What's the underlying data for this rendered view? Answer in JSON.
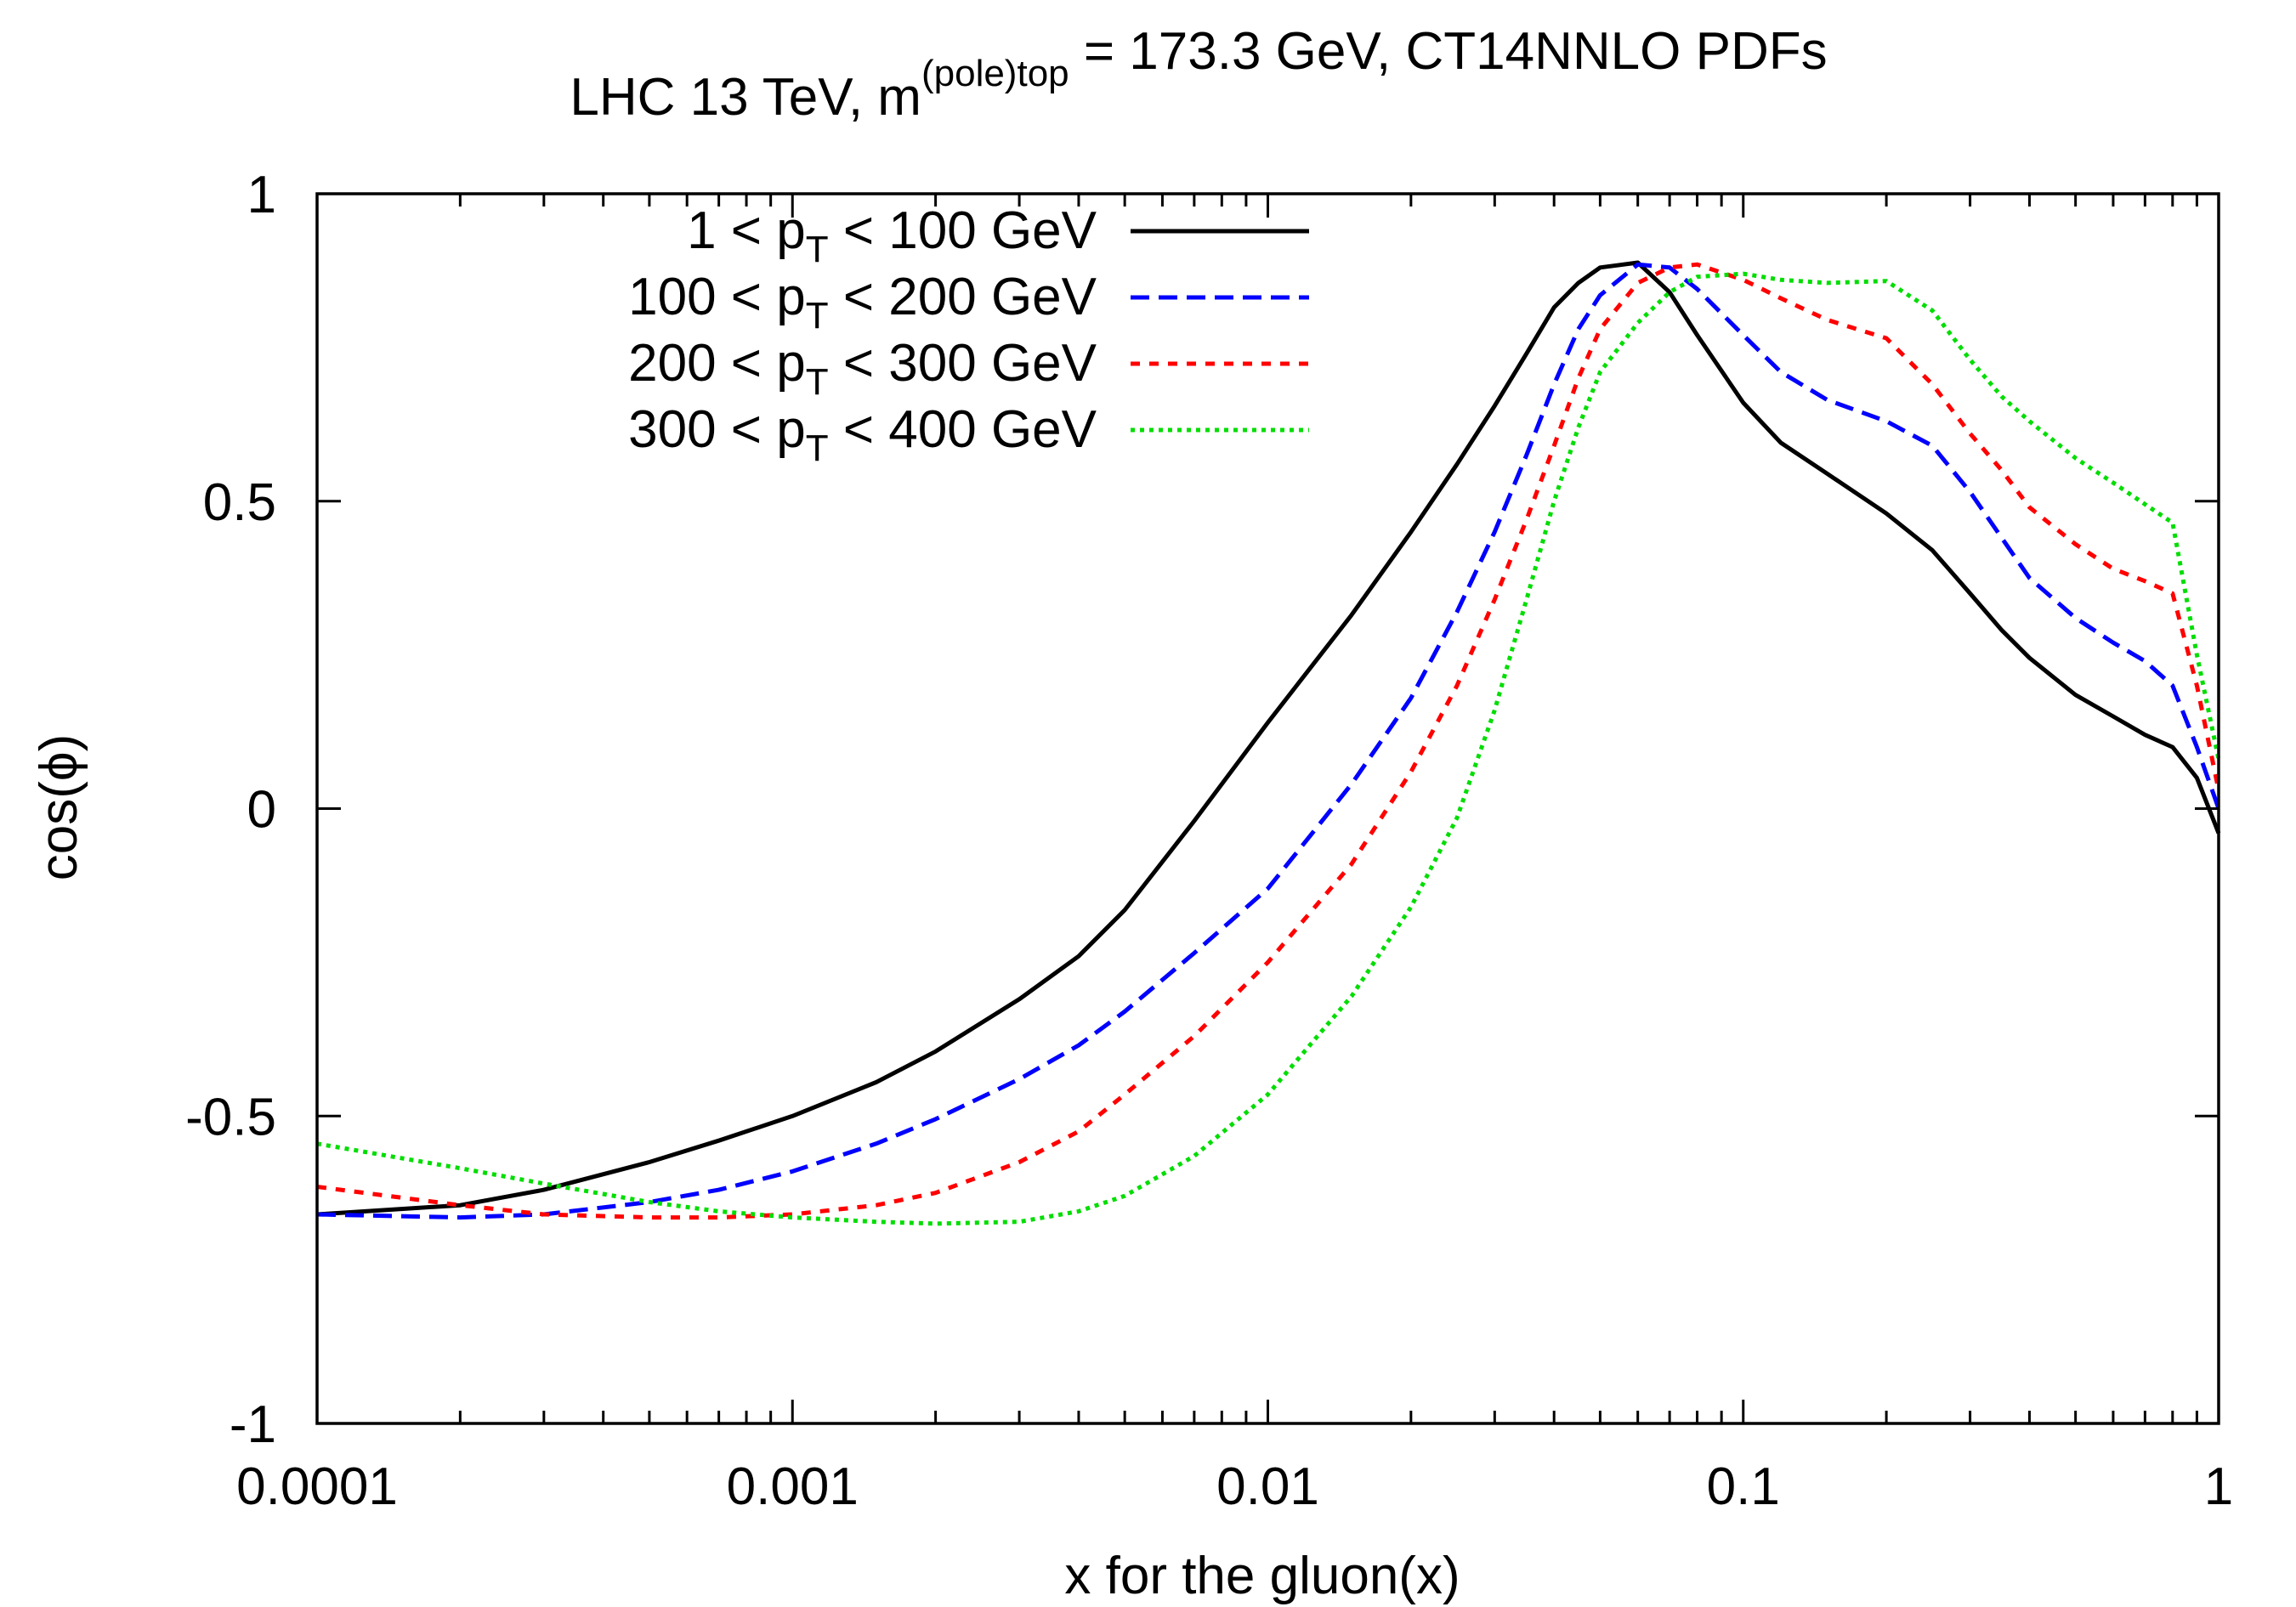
{
  "chart_data": {
    "type": "line",
    "title": {
      "prefix": "LHC 13 TeV, m",
      "superscript": "(pole)",
      "subscript": "top",
      "suffix": " = 173.3 GeV, CT14NNLO PDFs"
    },
    "xlabel": "x for the gluon(x)",
    "ylabel": "cos(ϕ)",
    "xscale": "log",
    "xlim": [
      0.0001,
      1
    ],
    "ylim": [
      -1,
      1
    ],
    "x_ticks": [
      {
        "value": 0.0001,
        "label": "0.0001"
      },
      {
        "value": 0.001,
        "label": "0.001"
      },
      {
        "value": 0.01,
        "label": "0.01"
      },
      {
        "value": 0.1,
        "label": "0.1"
      },
      {
        "value": 1,
        "label": "1"
      }
    ],
    "y_ticks": [
      {
        "value": -1,
        "label": "-1"
      },
      {
        "value": -0.5,
        "label": "-0.5"
      },
      {
        "value": 0,
        "label": "0"
      },
      {
        "value": 0.5,
        "label": "0.5"
      },
      {
        "value": 1,
        "label": "1"
      }
    ],
    "grid": false,
    "legend_position": "top-left",
    "series": [
      {
        "name": "1 < pT < 100 GeV",
        "legend": {
          "pre": "1 < p",
          "sub": "T",
          "post": " < 100 GeV"
        },
        "color": "#000000",
        "dash": "solid",
        "x": [
          0.0001,
          0.0002,
          0.0003,
          0.0005,
          0.0007,
          0.001,
          0.0015,
          0.002,
          0.003,
          0.004,
          0.005,
          0.007,
          0.01,
          0.015,
          0.02,
          0.025,
          0.03,
          0.035,
          0.04,
          0.045,
          0.05,
          0.06,
          0.07,
          0.08,
          0.1,
          0.12,
          0.15,
          0.2,
          0.25,
          0.3,
          0.35,
          0.4,
          0.5,
          0.6,
          0.7,
          0.8,
          0.9,
          1.0
        ],
        "y": [
          -0.66,
          -0.645,
          -0.62,
          -0.575,
          -0.54,
          -0.5,
          -0.445,
          -0.395,
          -0.31,
          -0.24,
          -0.165,
          -0.02,
          0.14,
          0.315,
          0.45,
          0.56,
          0.655,
          0.74,
          0.815,
          0.855,
          0.88,
          0.888,
          0.84,
          0.77,
          0.66,
          0.595,
          0.545,
          0.48,
          0.42,
          0.35,
          0.29,
          0.245,
          0.185,
          0.15,
          0.12,
          0.1,
          0.05,
          -0.04
        ]
      },
      {
        "name": "100 < pT < 200 GeV",
        "legend": {
          "pre": "100 < p",
          "sub": "T",
          "post": " < 200 GeV"
        },
        "color": "#0000ff",
        "dash": "22 11",
        "x": [
          0.0001,
          0.0002,
          0.0003,
          0.0005,
          0.0007,
          0.001,
          0.0015,
          0.002,
          0.003,
          0.004,
          0.005,
          0.007,
          0.01,
          0.015,
          0.02,
          0.025,
          0.03,
          0.035,
          0.04,
          0.045,
          0.05,
          0.06,
          0.07,
          0.08,
          0.1,
          0.12,
          0.15,
          0.2,
          0.25,
          0.3,
          0.35,
          0.4,
          0.5,
          0.6,
          0.7,
          0.8,
          0.9,
          1.0
        ],
        "y": [
          -0.66,
          -0.665,
          -0.66,
          -0.64,
          -0.62,
          -0.59,
          -0.545,
          -0.505,
          -0.44,
          -0.385,
          -0.33,
          -0.235,
          -0.13,
          0.04,
          0.18,
          0.32,
          0.45,
          0.575,
          0.69,
          0.78,
          0.835,
          0.885,
          0.88,
          0.845,
          0.77,
          0.71,
          0.665,
          0.63,
          0.59,
          0.515,
          0.44,
          0.375,
          0.31,
          0.27,
          0.24,
          0.2,
          0.1,
          0.0
        ]
      },
      {
        "name": "200 < pT < 300 GeV",
        "legend": {
          "pre": "200 < p",
          "sub": "T",
          "post": " < 300 GeV"
        },
        "color": "#ff0000",
        "dash": "11 11",
        "x": [
          0.0001,
          0.0002,
          0.0003,
          0.0005,
          0.0007,
          0.001,
          0.0015,
          0.002,
          0.003,
          0.004,
          0.005,
          0.007,
          0.01,
          0.015,
          0.02,
          0.025,
          0.03,
          0.035,
          0.04,
          0.045,
          0.05,
          0.06,
          0.07,
          0.08,
          0.1,
          0.12,
          0.15,
          0.2,
          0.25,
          0.3,
          0.35,
          0.4,
          0.5,
          0.6,
          0.7,
          0.8,
          0.9,
          1.0
        ],
        "y": [
          -0.615,
          -0.645,
          -0.66,
          -0.665,
          -0.665,
          -0.66,
          -0.645,
          -0.625,
          -0.575,
          -0.525,
          -0.465,
          -0.37,
          -0.25,
          -0.09,
          0.06,
          0.2,
          0.34,
          0.47,
          0.59,
          0.7,
          0.78,
          0.855,
          0.88,
          0.885,
          0.86,
          0.83,
          0.795,
          0.765,
          0.69,
          0.61,
          0.55,
          0.49,
          0.43,
          0.39,
          0.37,
          0.35,
          0.2,
          0.03
        ]
      },
      {
        "name": "300 < pT < 400 GeV",
        "legend": {
          "pre": "300 < p",
          "sub": "T",
          "post": " < 400 GeV"
        },
        "color": "#00dd00",
        "dash": "5 6",
        "x": [
          0.0001,
          0.0002,
          0.0003,
          0.0005,
          0.0007,
          0.001,
          0.0015,
          0.002,
          0.003,
          0.004,
          0.005,
          0.007,
          0.01,
          0.015,
          0.02,
          0.025,
          0.03,
          0.035,
          0.04,
          0.045,
          0.05,
          0.06,
          0.07,
          0.08,
          0.1,
          0.12,
          0.15,
          0.2,
          0.25,
          0.3,
          0.35,
          0.4,
          0.5,
          0.6,
          0.7,
          0.8,
          0.9,
          1.0
        ],
        "y": [
          -0.545,
          -0.585,
          -0.61,
          -0.64,
          -0.655,
          -0.665,
          -0.672,
          -0.675,
          -0.672,
          -0.655,
          -0.63,
          -0.565,
          -0.465,
          -0.305,
          -0.16,
          -0.015,
          0.16,
          0.34,
          0.5,
          0.62,
          0.71,
          0.79,
          0.84,
          0.865,
          0.87,
          0.86,
          0.855,
          0.858,
          0.81,
          0.73,
          0.67,
          0.63,
          0.57,
          0.53,
          0.495,
          0.465,
          0.25,
          0.08
        ]
      }
    ]
  }
}
